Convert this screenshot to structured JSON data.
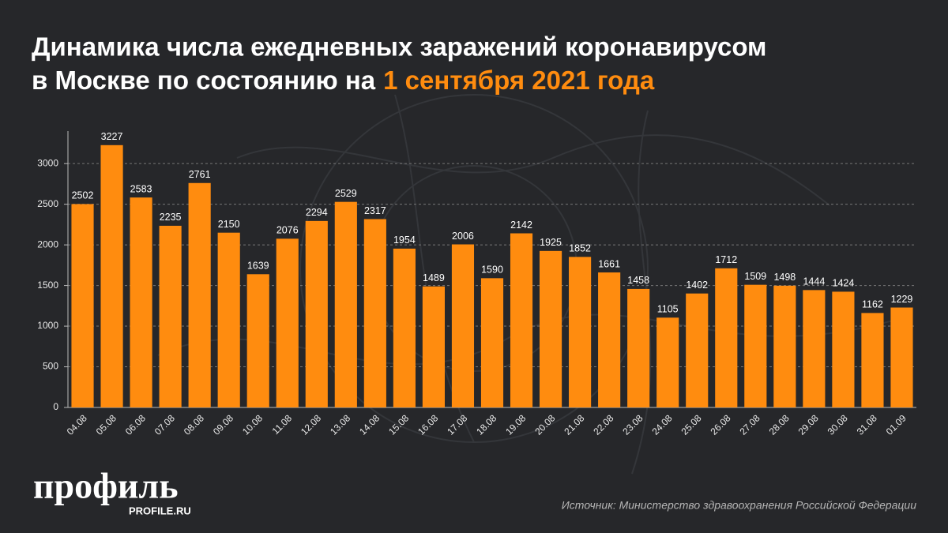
{
  "chart_data": {
    "type": "bar",
    "title": "Динамика числа ежедневных заражений коронавирусом",
    "title_line2": "в Москве по состоянию на",
    "title_highlight": "1 сентября 2021 года",
    "categories": [
      "04.08",
      "05.08",
      "06.08",
      "07.08",
      "08.08",
      "09.08",
      "10.08",
      "11.08",
      "12.08",
      "13.08",
      "14.08",
      "15.08",
      "16.08",
      "17.08",
      "18.08",
      "19.08",
      "20.08",
      "21.08",
      "22.08",
      "23.08",
      "24.08",
      "25.08",
      "26.08",
      "27.08",
      "28.08",
      "29.08",
      "30.08",
      "31.08",
      "01.09"
    ],
    "values": [
      2502,
      3227,
      2583,
      2235,
      2761,
      2150,
      1639,
      2076,
      2294,
      2529,
      2317,
      1954,
      1489,
      2006,
      1590,
      2142,
      1925,
      1852,
      1661,
      1458,
      1105,
      1402,
      1712,
      1509,
      1498,
      1444,
      1424,
      1162,
      1229
    ],
    "color": "#ff8c0f",
    "ylim": [
      0,
      3400
    ],
    "yticks": [
      0,
      500,
      1000,
      1500,
      2000,
      2500,
      3000
    ],
    "grid": true
  },
  "logo": "профиль",
  "logo_url": "PROFILE.RU",
  "source": "Источник: Министерство здравоохранения Российской Федерации"
}
